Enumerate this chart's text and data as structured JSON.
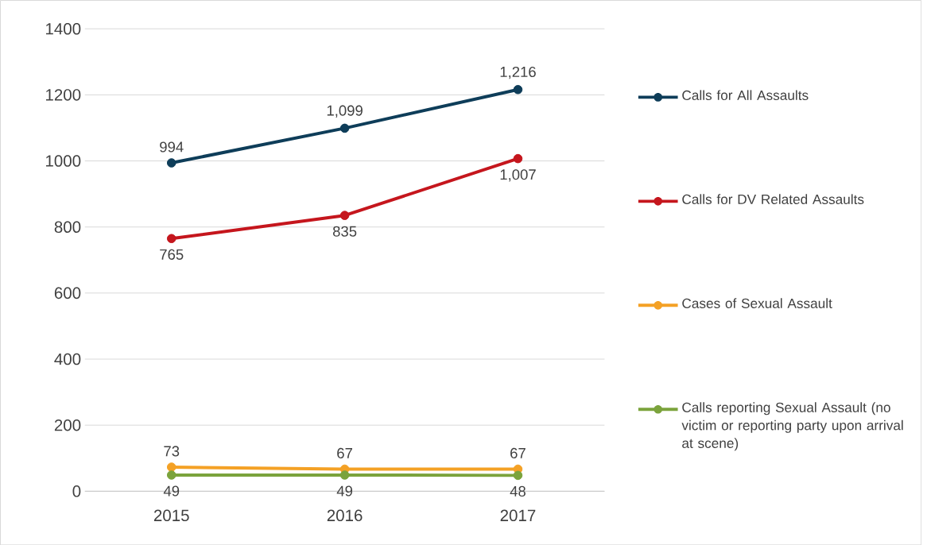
{
  "chart_data": {
    "type": "line",
    "categories": [
      "2015",
      "2016",
      "2017"
    ],
    "ylim": [
      0,
      1400
    ],
    "yticks": [
      0,
      200,
      400,
      600,
      800,
      1000,
      1200,
      1400
    ],
    "grid": "y",
    "legend": "right",
    "marker": "circle",
    "series": [
      {
        "name": "Calls for All Assaults",
        "color": "#0e3d59",
        "values": [
          994,
          1099,
          1216
        ],
        "value_labels": [
          "994",
          "1,099",
          "1,216"
        ]
      },
      {
        "name": "Calls for DV Related Assaults",
        "color": "#c5161d",
        "values": [
          765,
          835,
          1007
        ],
        "value_labels": [
          "765",
          "835",
          "1,007"
        ]
      },
      {
        "name": "Cases of Sexual Assault",
        "color": "#f4a125",
        "values": [
          73,
          67,
          67
        ],
        "value_labels": [
          "73",
          "67",
          "67"
        ]
      },
      {
        "name": "Calls reporting Sexual Assault (no victim or reporting party upon arrival at scene)",
        "color": "#7ba33c",
        "values": [
          49,
          49,
          48
        ],
        "value_labels": [
          "49",
          "49",
          "48"
        ]
      }
    ]
  }
}
